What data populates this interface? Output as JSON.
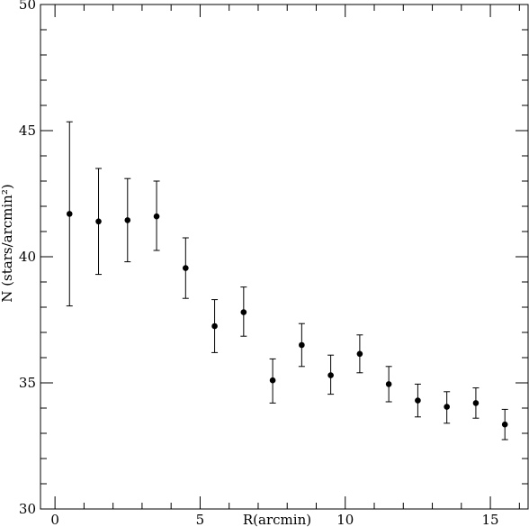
{
  "chart_data": {
    "type": "scatter",
    "title": "",
    "xlabel": "R(arcmin)",
    "ylabel": "N (stars/arcmin²)",
    "xlim": [
      -0.5,
      16.3
    ],
    "ylim": [
      30,
      50
    ],
    "xticks_major": [
      0,
      5,
      10,
      15
    ],
    "yticks_major": [
      30,
      35,
      40,
      45,
      50
    ],
    "x_minor_step": 1,
    "y_minor_step": 1,
    "grid": false,
    "series": [
      {
        "marker_color": "#000000",
        "x": [
          0.5,
          1.5,
          2.5,
          3.5,
          4.5,
          5.5,
          6.5,
          7.5,
          8.5,
          9.5,
          10.5,
          11.5,
          12.5,
          13.5,
          14.5,
          15.5
        ],
        "y": [
          41.7,
          41.4,
          41.45,
          41.6,
          39.55,
          37.25,
          37.8,
          35.1,
          36.5,
          35.3,
          36.15,
          34.95,
          34.3,
          34.05,
          34.2,
          33.35
        ],
        "yerr_low": [
          38.05,
          39.3,
          39.8,
          40.25,
          38.35,
          36.2,
          36.85,
          34.2,
          35.65,
          34.55,
          35.4,
          34.25,
          33.65,
          33.4,
          33.6,
          32.75
        ],
        "yerr_high": [
          45.35,
          43.5,
          43.1,
          43.0,
          40.75,
          38.3,
          38.8,
          35.95,
          37.35,
          36.1,
          36.9,
          35.65,
          34.95,
          34.65,
          34.8,
          33.95
        ]
      }
    ]
  }
}
